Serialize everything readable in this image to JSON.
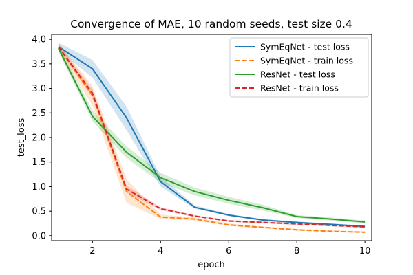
{
  "chart_data": {
    "type": "line",
    "title": "Convergence of MAE, 10 random seeds, test size 0.4",
    "xlabel": "epoch",
    "ylabel": "test_loss",
    "xlim": [
      0.8,
      10.2
    ],
    "ylim": [
      -0.1,
      4.1
    ],
    "x_ticks": [
      2,
      4,
      6,
      8,
      10
    ],
    "y_ticks": [
      0.0,
      0.5,
      1.0,
      1.5,
      2.0,
      2.5,
      3.0,
      3.5,
      4.0
    ],
    "grid": false,
    "legend_position": "top-right",
    "x": [
      1,
      2,
      3,
      4,
      5,
      6,
      7,
      8,
      9,
      10
    ],
    "series": [
      {
        "name": "SymEqNet - test loss",
        "color": "#1f77b4",
        "dash": "solid",
        "values": [
          3.85,
          3.4,
          2.4,
          1.1,
          0.58,
          0.42,
          0.32,
          0.27,
          0.23,
          0.19
        ],
        "band_low": [
          3.78,
          3.22,
          2.15,
          1.0,
          0.55,
          0.4,
          0.3,
          0.25,
          0.21,
          0.17
        ],
        "band_high": [
          3.93,
          3.58,
          2.63,
          1.2,
          0.62,
          0.44,
          0.34,
          0.29,
          0.25,
          0.21
        ]
      },
      {
        "name": "SymEqNet - train loss",
        "color": "#ff7f0e",
        "dash": "dashed",
        "values": [
          3.85,
          2.85,
          0.9,
          0.38,
          0.34,
          0.22,
          0.17,
          0.12,
          0.09,
          0.07
        ],
        "band_low": [
          3.78,
          2.65,
          0.67,
          0.34,
          0.31,
          0.2,
          0.15,
          0.1,
          0.08,
          0.06
        ],
        "band_high": [
          3.93,
          3.05,
          1.15,
          0.43,
          0.37,
          0.25,
          0.19,
          0.14,
          0.11,
          0.09
        ]
      },
      {
        "name": "ResNet - test loss",
        "color": "#2ca02c",
        "dash": "solid",
        "values": [
          3.82,
          2.43,
          1.7,
          1.18,
          0.9,
          0.72,
          0.57,
          0.39,
          0.34,
          0.28
        ],
        "band_low": [
          3.75,
          2.33,
          1.58,
          1.08,
          0.82,
          0.65,
          0.51,
          0.36,
          0.31,
          0.25
        ],
        "band_high": [
          3.9,
          2.55,
          1.82,
          1.28,
          0.98,
          0.79,
          0.63,
          0.42,
          0.37,
          0.31
        ]
      },
      {
        "name": "ResNet - train loss",
        "color": "#d62728",
        "dash": "dashed",
        "values": [
          3.85,
          2.9,
          0.95,
          0.55,
          0.4,
          0.3,
          0.27,
          0.24,
          0.21,
          0.18
        ],
        "band_low": [
          3.8,
          2.82,
          0.88,
          0.52,
          0.38,
          0.28,
          0.25,
          0.22,
          0.19,
          0.16
        ],
        "band_high": [
          3.9,
          2.98,
          1.02,
          0.58,
          0.42,
          0.32,
          0.29,
          0.26,
          0.23,
          0.2
        ]
      }
    ]
  }
}
